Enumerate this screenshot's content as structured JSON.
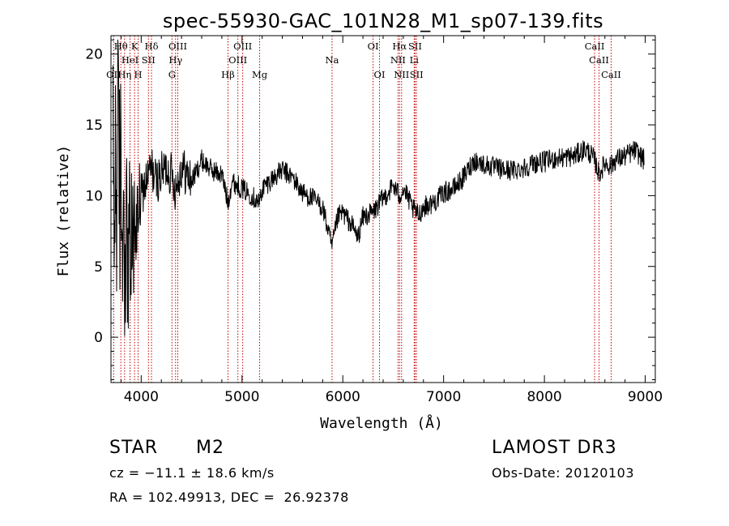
{
  "chart_data": {
    "type": "line",
    "title": "spec-55930-GAC_101N28_M1_sp07-139.fits",
    "xlabel": "Wavelength (Å)",
    "ylabel": "Flux (relative)",
    "xlim": [
      3700,
      9100
    ],
    "ylim": [
      -3.2,
      21.3
    ],
    "xticks": [
      4000,
      5000,
      6000,
      7000,
      8000,
      9000
    ],
    "xtick_labels": [
      "4000",
      "5000",
      "6000",
      "7000",
      "8000",
      "9000"
    ],
    "yticks": [
      0,
      5,
      10,
      15,
      20
    ],
    "ytick_labels": [
      "0",
      "5",
      "10",
      "15",
      "20"
    ],
    "spectrum_anchor_points": {
      "x": [
        3720,
        3760,
        3800,
        3850,
        3900,
        3950,
        4000,
        4050,
        4100,
        4150,
        4200,
        4250,
        4300,
        4340,
        4400,
        4500,
        4600,
        4700,
        4800,
        4860,
        4900,
        5000,
        5100,
        5170,
        5200,
        5300,
        5400,
        5500,
        5600,
        5700,
        5800,
        5893,
        5950,
        6000,
        6100,
        6150,
        6200,
        6300,
        6400,
        6500,
        6563,
        6600,
        6700,
        6750,
        6800,
        6900,
        7000,
        7100,
        7200,
        7300,
        7400,
        7500,
        7600,
        7700,
        7800,
        7900,
        8000,
        8100,
        8200,
        8300,
        8400,
        8450,
        8500,
        8542,
        8600,
        8662,
        8700,
        8800,
        8900,
        8990
      ],
      "y": [
        9,
        13,
        10,
        7,
        6,
        8,
        10,
        11,
        12,
        11,
        11.5,
        12,
        11.5,
        10.5,
        12,
        11,
        12.5,
        11.8,
        11.5,
        9.5,
        11,
        10.5,
        10,
        9.5,
        10.5,
        11.2,
        11.8,
        11.3,
        10.2,
        9.8,
        9.2,
        6.3,
        8.5,
        8.8,
        7.8,
        7,
        8.5,
        8.8,
        9.8,
        10.7,
        10,
        10.5,
        9,
        8.6,
        9.2,
        9.5,
        10.2,
        10.5,
        11.3,
        12.5,
        12.2,
        12,
        11.8,
        11.8,
        12,
        12.3,
        12.4,
        12.6,
        12.7,
        12.8,
        13.3,
        13,
        12.5,
        11.5,
        12.3,
        12.1,
        12.5,
        12.8,
        13.2,
        12.5
      ]
    },
    "lines": [
      {
        "label": "Hθ",
        "x": 3798,
        "row": 0
      },
      {
        "label": "K",
        "x": 3934,
        "row": 0
      },
      {
        "label": "Hδ",
        "x": 4102,
        "row": 0
      },
      {
        "label": "OIII",
        "x": 4363,
        "row": 0
      },
      {
        "label": "OIII",
        "x": 5007,
        "row": 0
      },
      {
        "label": "OI",
        "x": 6300,
        "row": 0
      },
      {
        "label": "Hα",
        "x": 6563,
        "row": 0
      },
      {
        "label": "SII",
        "x": 6717,
        "row": 0
      },
      {
        "label": "CaII",
        "x": 8498,
        "row": 0
      },
      {
        "label": "HeI",
        "x": 3889,
        "row": 1
      },
      {
        "label": "SII",
        "x": 4072,
        "row": 1
      },
      {
        "label": "Hγ",
        "x": 4341,
        "row": 1
      },
      {
        "label": "OIII",
        "x": 4959,
        "row": 1
      },
      {
        "label": "Na",
        "x": 5893,
        "row": 1
      },
      {
        "label": "NII",
        "x": 6548,
        "row": 1
      },
      {
        "label": "Li",
        "x": 6708,
        "row": 1
      },
      {
        "label": "CaII",
        "x": 8542,
        "row": 1
      },
      {
        "label": "OII",
        "x": 3727,
        "row": 2
      },
      {
        "label": "Hη",
        "x": 3835,
        "row": 2
      },
      {
        "label": "H",
        "x": 3969,
        "row": 2
      },
      {
        "label": "G",
        "x": 4305,
        "row": 2
      },
      {
        "label": "Hβ",
        "x": 4861,
        "row": 2
      },
      {
        "label": "Mg",
        "x": 5175,
        "row": 2
      },
      {
        "label": "OI",
        "x": 6364,
        "row": 2
      },
      {
        "label": "NII",
        "x": 6583,
        "row": 2
      },
      {
        "label": "SII",
        "x": 6731,
        "row": 2
      },
      {
        "label": "CaII",
        "x": 8662,
        "row": 2
      }
    ],
    "line_color": "#000000",
    "marker_color": "#c00000"
  },
  "info": {
    "class": "STAR",
    "subclass": "M2",
    "survey": "LAMOST DR3",
    "cz": "cz = −11.1 ± 18.6 km/s",
    "obs_date": "Obs-Date: 20120103",
    "coords": "RA = 102.49913, DEC =  26.92378"
  }
}
